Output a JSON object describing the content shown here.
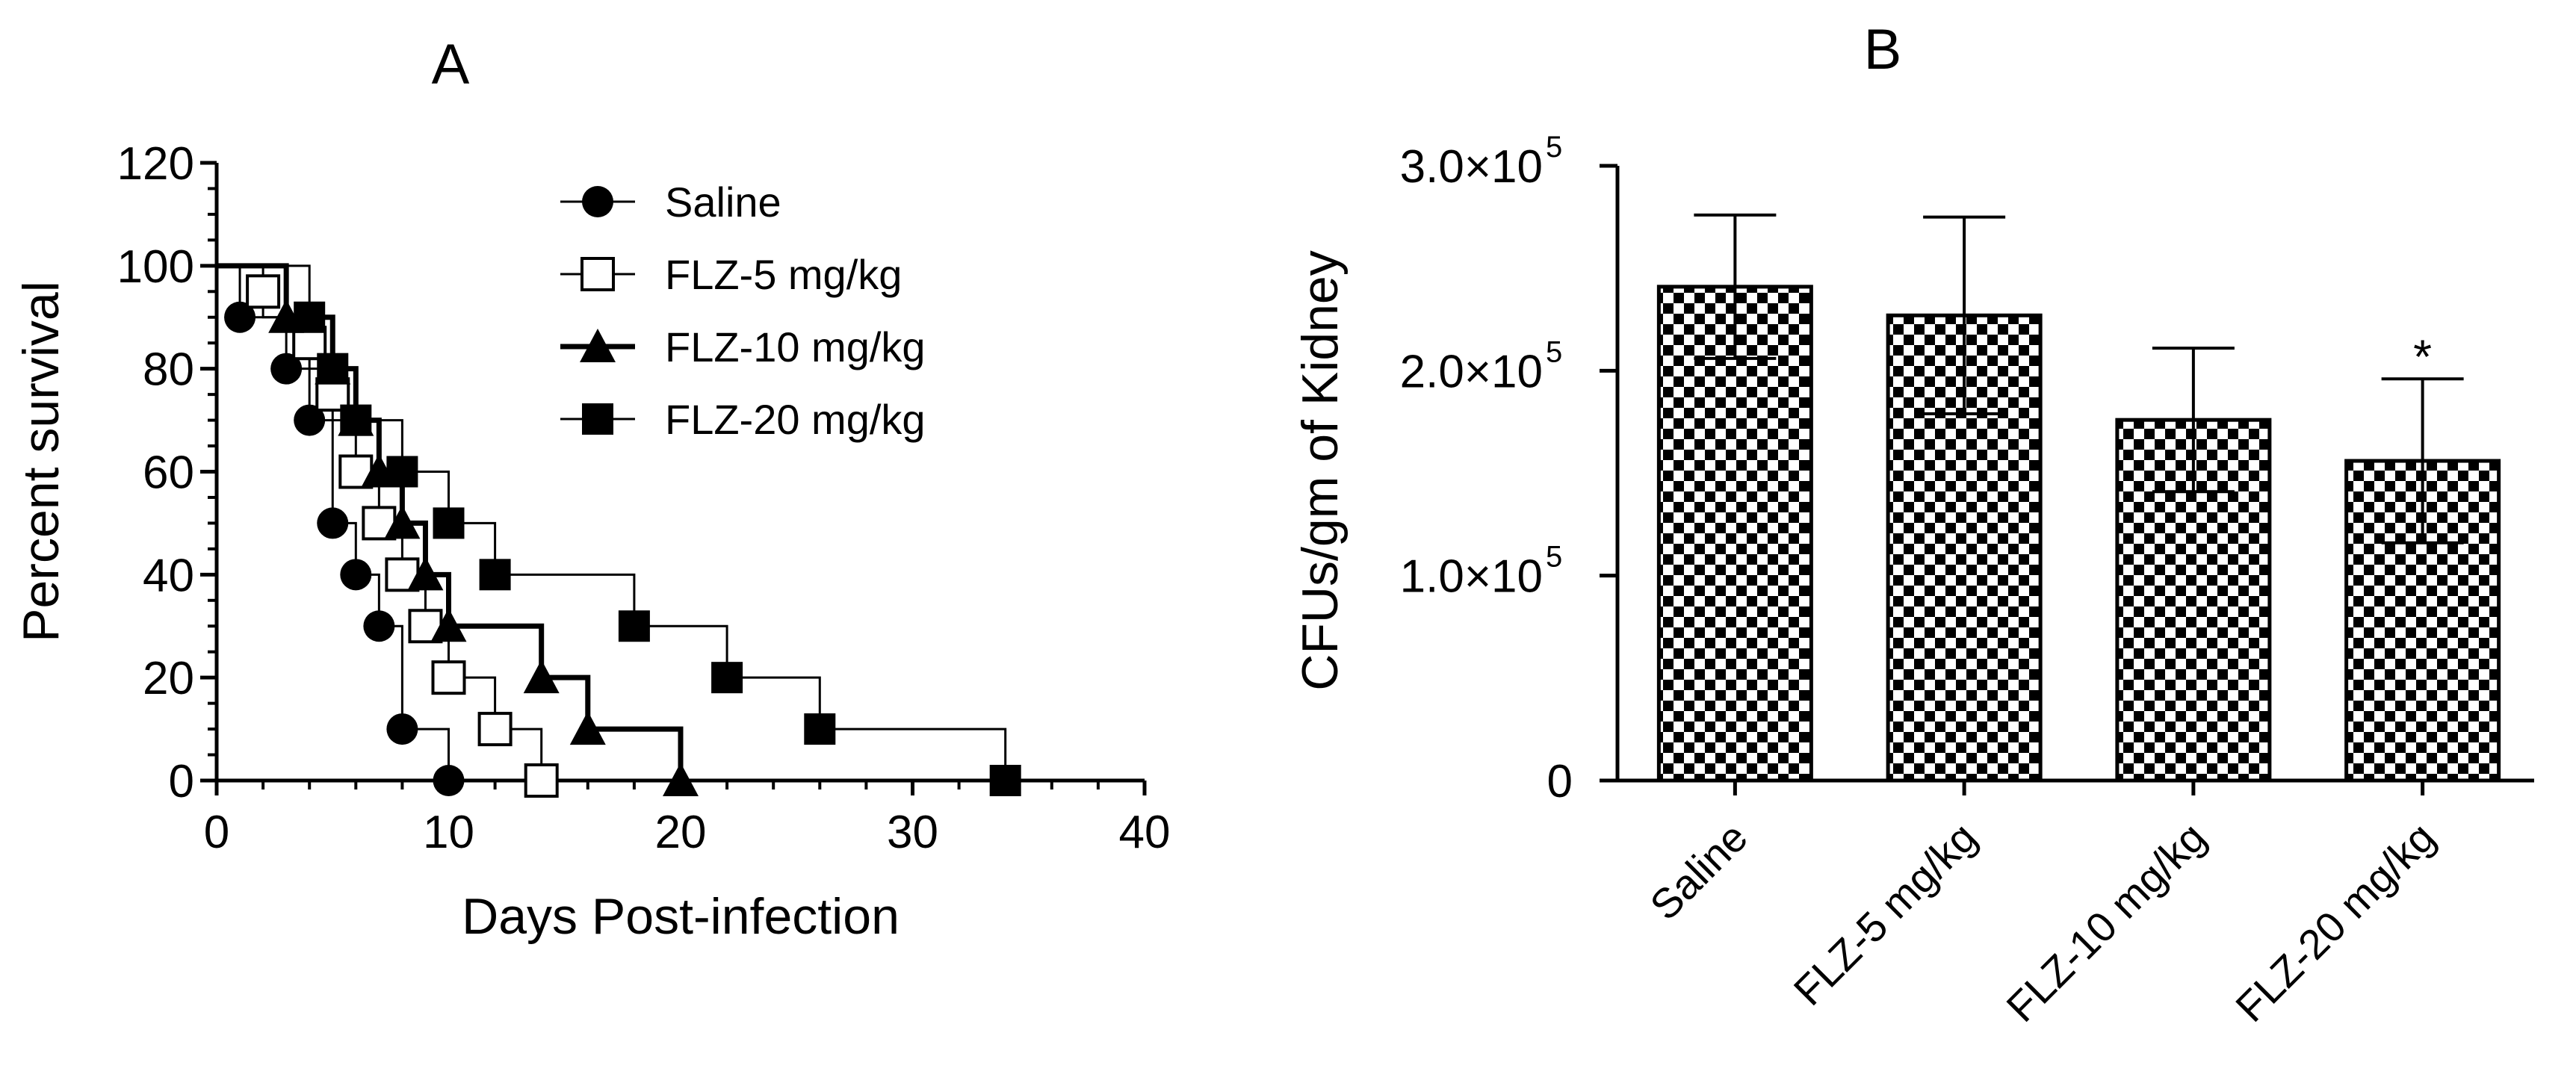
{
  "figure": {
    "panels": [
      "A",
      "B"
    ]
  },
  "chart_data": [
    {
      "panel": "A",
      "type": "line",
      "subtype": "kaplan-meier step survival curves",
      "title": "A",
      "xlabel": "Days Post-infection",
      "ylabel": "Percent survival",
      "xlim": [
        0,
        40
      ],
      "ylim": [
        0,
        120
      ],
      "xticks": [
        0,
        10,
        20,
        30,
        40
      ],
      "yticks": [
        0,
        20,
        40,
        60,
        80,
        100,
        120
      ],
      "grid": false,
      "legend_position": "top-center",
      "series": [
        {
          "name": "Saline",
          "marker": "filled-circle",
          "line": "thin",
          "steps": [
            [
              0,
              100
            ],
            [
              1,
              90
            ],
            [
              3,
              80
            ],
            [
              4,
              70
            ],
            [
              5,
              50
            ],
            [
              6,
              40
            ],
            [
              7,
              30
            ],
            [
              8,
              10
            ],
            [
              10,
              0
            ]
          ],
          "markers": [
            [
              1,
              90
            ],
            [
              3,
              80
            ],
            [
              4,
              70
            ],
            [
              5,
              50
            ],
            [
              6,
              40
            ],
            [
              7,
              30
            ],
            [
              8,
              10
            ],
            [
              10,
              0
            ]
          ]
        },
        {
          "name": "FLZ-5 mg/kg",
          "marker": "open-square",
          "line": "thin",
          "steps": [
            [
              0,
              100
            ],
            [
              2,
              90
            ],
            [
              4,
              80
            ],
            [
              5,
              70
            ],
            [
              6,
              60
            ],
            [
              7,
              50
            ],
            [
              8,
              40
            ],
            [
              9,
              30
            ],
            [
              10,
              20
            ],
            [
              12,
              10
            ],
            [
              14,
              0
            ]
          ],
          "markers": [
            [
              2,
              95
            ],
            [
              4,
              85
            ],
            [
              5,
              75
            ],
            [
              6,
              60
            ],
            [
              7,
              50
            ],
            [
              8,
              40
            ],
            [
              9,
              30
            ],
            [
              10,
              20
            ],
            [
              12,
              10
            ],
            [
              14,
              0
            ]
          ]
        },
        {
          "name": "FLZ-10 mg/kg",
          "marker": "filled-triangle",
          "line": "thick",
          "steps": [
            [
              0,
              100
            ],
            [
              3,
              90
            ],
            [
              5,
              80
            ],
            [
              6,
              70
            ],
            [
              7,
              60
            ],
            [
              8,
              50
            ],
            [
              9,
              40
            ],
            [
              10,
              30
            ],
            [
              14,
              20
            ],
            [
              16,
              10
            ],
            [
              20,
              0
            ]
          ],
          "markers": [
            [
              3,
              90
            ],
            [
              5,
              80
            ],
            [
              6,
              70
            ],
            [
              7,
              60
            ],
            [
              8,
              50
            ],
            [
              9,
              40
            ],
            [
              10,
              30
            ],
            [
              14,
              20
            ],
            [
              16,
              10
            ],
            [
              20,
              0
            ]
          ]
        },
        {
          "name": "FLZ-20 mg/kg",
          "marker": "filled-square",
          "line": "thin",
          "steps": [
            [
              0,
              100
            ],
            [
              4,
              90
            ],
            [
              5,
              80
            ],
            [
              6,
              70
            ],
            [
              8,
              60
            ],
            [
              10,
              50
            ],
            [
              12,
              40
            ],
            [
              18,
              30
            ],
            [
              22,
              20
            ],
            [
              26,
              10
            ],
            [
              34,
              0
            ]
          ],
          "markers": [
            [
              4,
              90
            ],
            [
              5,
              80
            ],
            [
              6,
              70
            ],
            [
              8,
              60
            ],
            [
              10,
              50
            ],
            [
              12,
              40
            ],
            [
              18,
              30
            ],
            [
              22,
              20
            ],
            [
              26,
              10
            ],
            [
              34,
              0
            ]
          ]
        }
      ]
    },
    {
      "panel": "B",
      "type": "bar",
      "title": "B",
      "xlabel": "",
      "ylabel": "CFUs/gm of Kidney",
      "ylim": [
        0,
        300000
      ],
      "yticks": [
        0,
        100000,
        200000,
        300000
      ],
      "ytick_labels": [
        {
          "mantissa": "0",
          "exponent": ""
        },
        {
          "mantissa": "1.0×10",
          "exponent": "5"
        },
        {
          "mantissa": "2.0×10",
          "exponent": "5"
        },
        {
          "mantissa": "3.0×10",
          "exponent": "5"
        }
      ],
      "categories": [
        "Saline",
        "FLZ-5 mg/kg",
        "FLZ-10 mg/kg",
        "FLZ-20 mg/kg"
      ],
      "values": [
        241000,
        227000,
        176000,
        156000
      ],
      "errors": [
        35000,
        48000,
        35000,
        40000
      ],
      "fill": "checkerboard",
      "annotations": [
        {
          "category": "FLZ-20 mg/kg",
          "text": "*"
        }
      ]
    }
  ],
  "colors": {
    "ink": "#000000",
    "background": "#ffffff",
    "checker_light": "#ffffff"
  }
}
